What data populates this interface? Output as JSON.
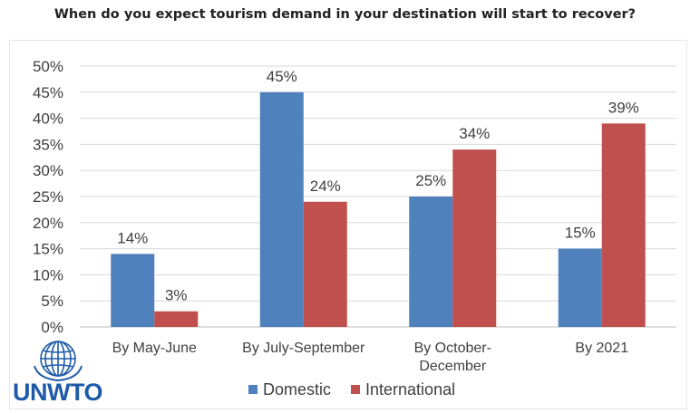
{
  "title": "When do you expect tourism demand in your destination will start to recover?",
  "logo": {
    "text": "UNWTO",
    "color": "#1e5aa8"
  },
  "chart_data": {
    "type": "bar",
    "title": "When do you expect tourism demand in your destination will start to recover?",
    "categories": [
      [
        "By May-June"
      ],
      [
        "By July-September"
      ],
      [
        "By October-",
        "December"
      ],
      [
        "By 2021"
      ]
    ],
    "series": [
      {
        "name": "Domestic",
        "color": "#4f81bd",
        "values": [
          14,
          45,
          25,
          15
        ],
        "labels": [
          "14%",
          "45%",
          "25%",
          "15%"
        ]
      },
      {
        "name": "International",
        "color": "#c0504d",
        "values": [
          3,
          24,
          34,
          39
        ],
        "labels": [
          "3%",
          "24%",
          "34%",
          "39%"
        ]
      }
    ],
    "ylim": [
      0,
      50
    ],
    "yticks": [
      "0%",
      "5%",
      "10%",
      "15%",
      "20%",
      "25%",
      "30%",
      "35%",
      "40%",
      "45%",
      "50%"
    ],
    "grid": true,
    "legend": "bottom"
  }
}
